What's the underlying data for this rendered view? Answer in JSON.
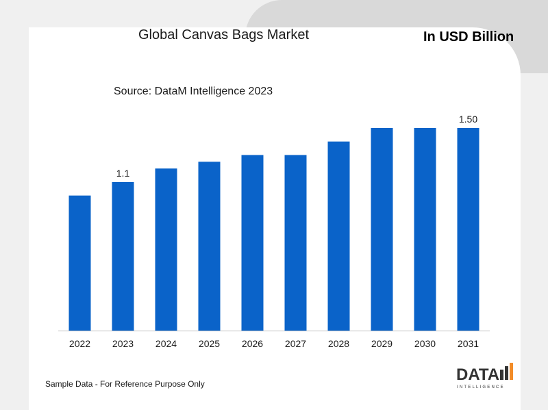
{
  "header": {
    "title": "Global Canvas Bags Market",
    "unit": "In USD Billion",
    "source": "Source: DataM Intelligence 2023"
  },
  "footer": {
    "note": "Sample Data - For Reference Purpose Only",
    "logo_text": "DATA",
    "logo_subtext": "INTELLIGENCE"
  },
  "colors": {
    "bar": "#0a63c9",
    "banner": "#d9d9d9",
    "logo_orange": "#f28c28"
  },
  "chart_data": {
    "type": "bar",
    "title": "Global Canvas Bags Market",
    "categories": [
      "2022",
      "2023",
      "2024",
      "2025",
      "2026",
      "2027",
      "2028",
      "2029",
      "2030",
      "2031"
    ],
    "values": [
      1.0,
      1.1,
      1.2,
      1.25,
      1.3,
      1.3,
      1.4,
      1.5,
      1.5,
      1.5
    ],
    "data_labels": [
      {
        "index": 1,
        "text": "1.1"
      },
      {
        "index": 9,
        "text": "1.50"
      }
    ],
    "ylim": [
      0,
      1.5
    ],
    "grid": false,
    "legend": "none"
  }
}
